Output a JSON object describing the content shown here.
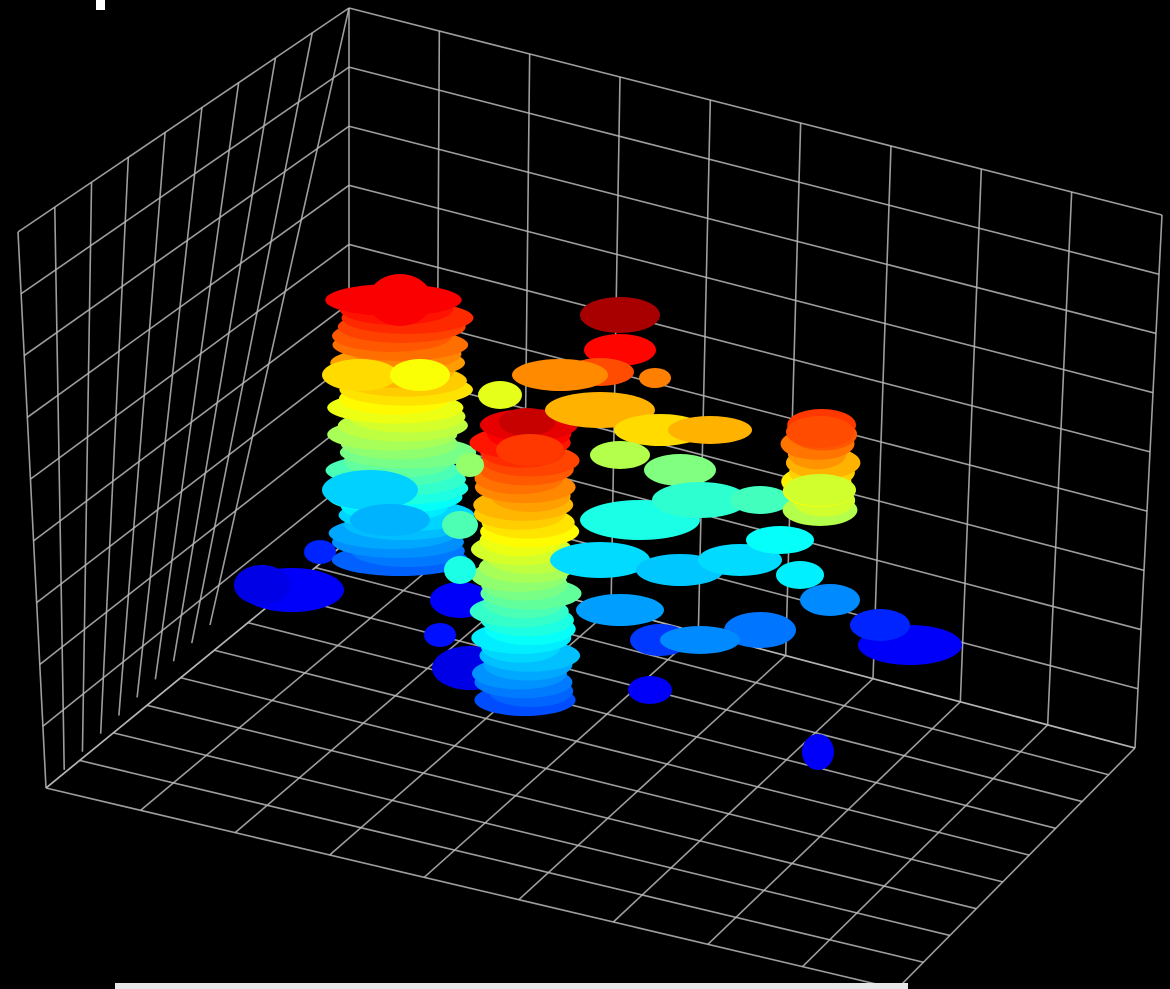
{
  "scene": {
    "description_kind": "3d-point-cloud-render",
    "background_color": "#000000",
    "grid_color": "#b9b9b9",
    "colormap": "jet",
    "colormap_stops": [
      "#00008f",
      "#0000ff",
      "#00ffff",
      "#ffff00",
      "#ff7f00",
      "#ff0000",
      "#800000"
    ],
    "grid": true,
    "axes_labels_visible": false
  }
}
